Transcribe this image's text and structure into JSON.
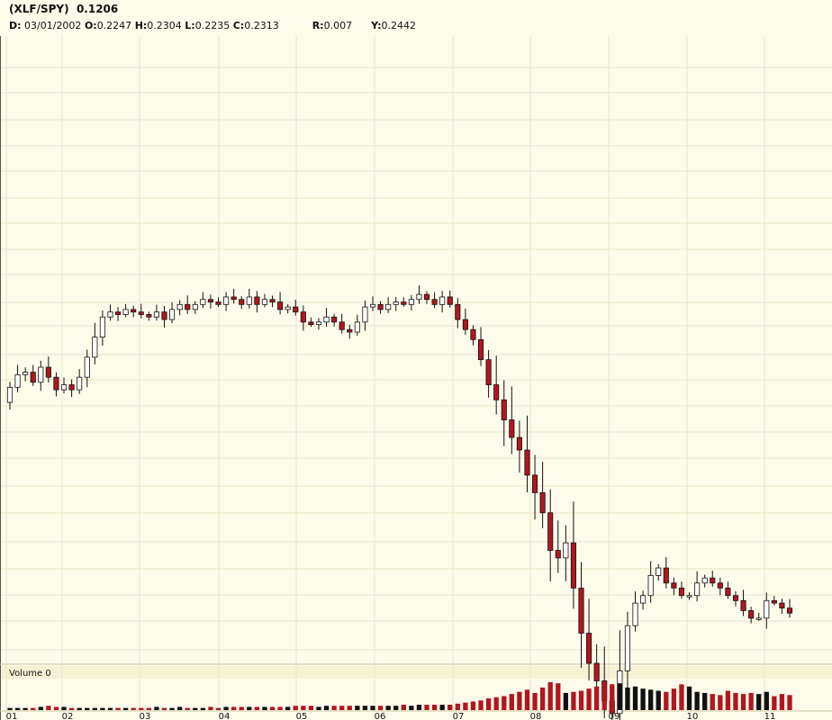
{
  "header": {
    "symbol": "(XLF/SPY)",
    "last": "0.1206",
    "date_key": "D:",
    "date": "03/01/2002",
    "open_key": "O:",
    "open": "0.2247",
    "high_key": "H:",
    "high": "0.2304",
    "low_key": "L:",
    "low": "0.2235",
    "close_key": "C:",
    "close": "0.2313",
    "r_key": "R:",
    "r": "0.007",
    "y_key": "Y:",
    "y": "0.2442"
  },
  "volume_label": "Volume 0",
  "colors": {
    "background": "#fdfbea",
    "grid": "#ebe6c6",
    "up": "#ffffff",
    "down": "#b0171f",
    "outline": "#111111"
  },
  "chart_data": {
    "type": "candlestick",
    "x_ticks": [
      "01",
      "02",
      "03",
      "04",
      "05",
      "06",
      "07",
      "08",
      "09",
      "10",
      "11"
    ],
    "ylim": [
      0.1,
      0.35
    ],
    "grid": true,
    "closes": [
      0.21,
      0.215,
      0.216,
      0.212,
      0.218,
      0.214,
      0.209,
      0.211,
      0.209,
      0.214,
      0.222,
      0.23,
      0.238,
      0.24,
      0.239,
      0.241,
      0.24,
      0.239,
      0.238,
      0.24,
      0.237,
      0.241,
      0.243,
      0.241,
      0.243,
      0.245,
      0.244,
      0.243,
      0.246,
      0.245,
      0.243,
      0.246,
      0.243,
      0.245,
      0.244,
      0.241,
      0.242,
      0.24,
      0.236,
      0.235,
      0.236,
      0.238,
      0.236,
      0.233,
      0.232,
      0.236,
      0.242,
      0.243,
      0.241,
      0.243,
      0.244,
      0.243,
      0.245,
      0.247,
      0.245,
      0.243,
      0.246,
      0.243,
      0.237,
      0.233,
      0.229,
      0.221,
      0.211,
      0.205,
      0.197,
      0.19,
      0.185,
      0.175,
      0.168,
      0.16,
      0.145,
      0.142,
      0.148,
      0.13,
      0.112,
      0.1,
      0.093,
      0.085,
      0.08,
      0.097,
      0.115,
      0.124,
      0.127,
      0.135,
      0.138,
      0.132,
      0.13,
      0.127,
      0.127,
      0.132,
      0.134,
      0.132,
      0.13,
      0.127,
      0.125,
      0.121,
      0.118,
      0.118,
      0.125,
      0.124,
      0.122,
      0.12
    ],
    "volume": [
      2,
      2,
      2,
      2,
      3,
      4,
      3,
      3,
      2,
      2,
      2,
      2,
      2,
      2,
      2,
      2,
      2,
      2,
      2,
      3,
      2,
      2,
      3,
      2,
      2,
      2,
      3,
      2,
      3,
      3,
      3,
      3,
      3,
      3,
      3,
      3,
      3,
      4,
      4,
      4,
      3,
      4,
      4,
      4,
      4,
      4,
      4,
      4,
      4,
      4,
      4,
      5,
      4,
      5,
      5,
      5,
      5,
      5,
      6,
      7,
      8,
      9,
      11,
      12,
      13,
      15,
      17,
      19,
      16,
      21,
      26,
      25,
      16,
      17,
      18,
      20,
      22,
      23,
      24,
      25,
      21,
      22,
      20,
      19,
      18,
      17,
      20,
      24,
      22,
      17,
      16,
      15,
      14,
      18,
      16,
      15,
      16,
      15,
      17,
      13,
      15,
      14
    ]
  }
}
